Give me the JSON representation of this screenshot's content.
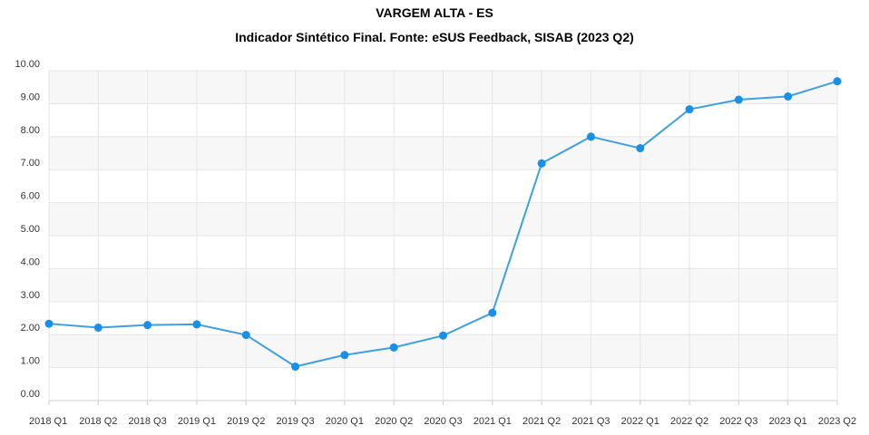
{
  "chart_data": {
    "type": "line",
    "title": "VARGEM ALTA - ES",
    "subtitle": "Indicador Sintético Final. Fonte: eSUS Feedback, SISAB (2023 Q2)",
    "xlabel": "",
    "ylabel": "",
    "ylim": [
      0,
      10
    ],
    "y_ticks": [
      "0.00",
      "1.00",
      "2.00",
      "3.00",
      "4.00",
      "5.00",
      "6.00",
      "7.00",
      "8.00",
      "9.00",
      "10.00"
    ],
    "categories": [
      "2018 Q1",
      "2018 Q2",
      "2018 Q3",
      "2019 Q1",
      "2019 Q2",
      "2019 Q3",
      "2020 Q1",
      "2020 Q2",
      "2020 Q3",
      "2021 Q1",
      "2021 Q2",
      "2021 Q3",
      "2022 Q1",
      "2022 Q2",
      "2022 Q3",
      "2023 Q1",
      "2023 Q2"
    ],
    "series": [
      {
        "values": [
          2.33,
          2.21,
          2.29,
          2.31,
          1.99,
          1.03,
          1.38,
          1.61,
          1.97,
          2.66,
          7.19,
          8.0,
          7.65,
          8.83,
          9.12,
          9.22,
          9.68
        ]
      }
    ],
    "grid": true,
    "legend": "none",
    "colors": {
      "line": "#3ea0e0",
      "point": "#1a8fe8",
      "band": "#f7f7f7",
      "grid": "#e6e6e6",
      "axis": "#cccccc"
    }
  }
}
